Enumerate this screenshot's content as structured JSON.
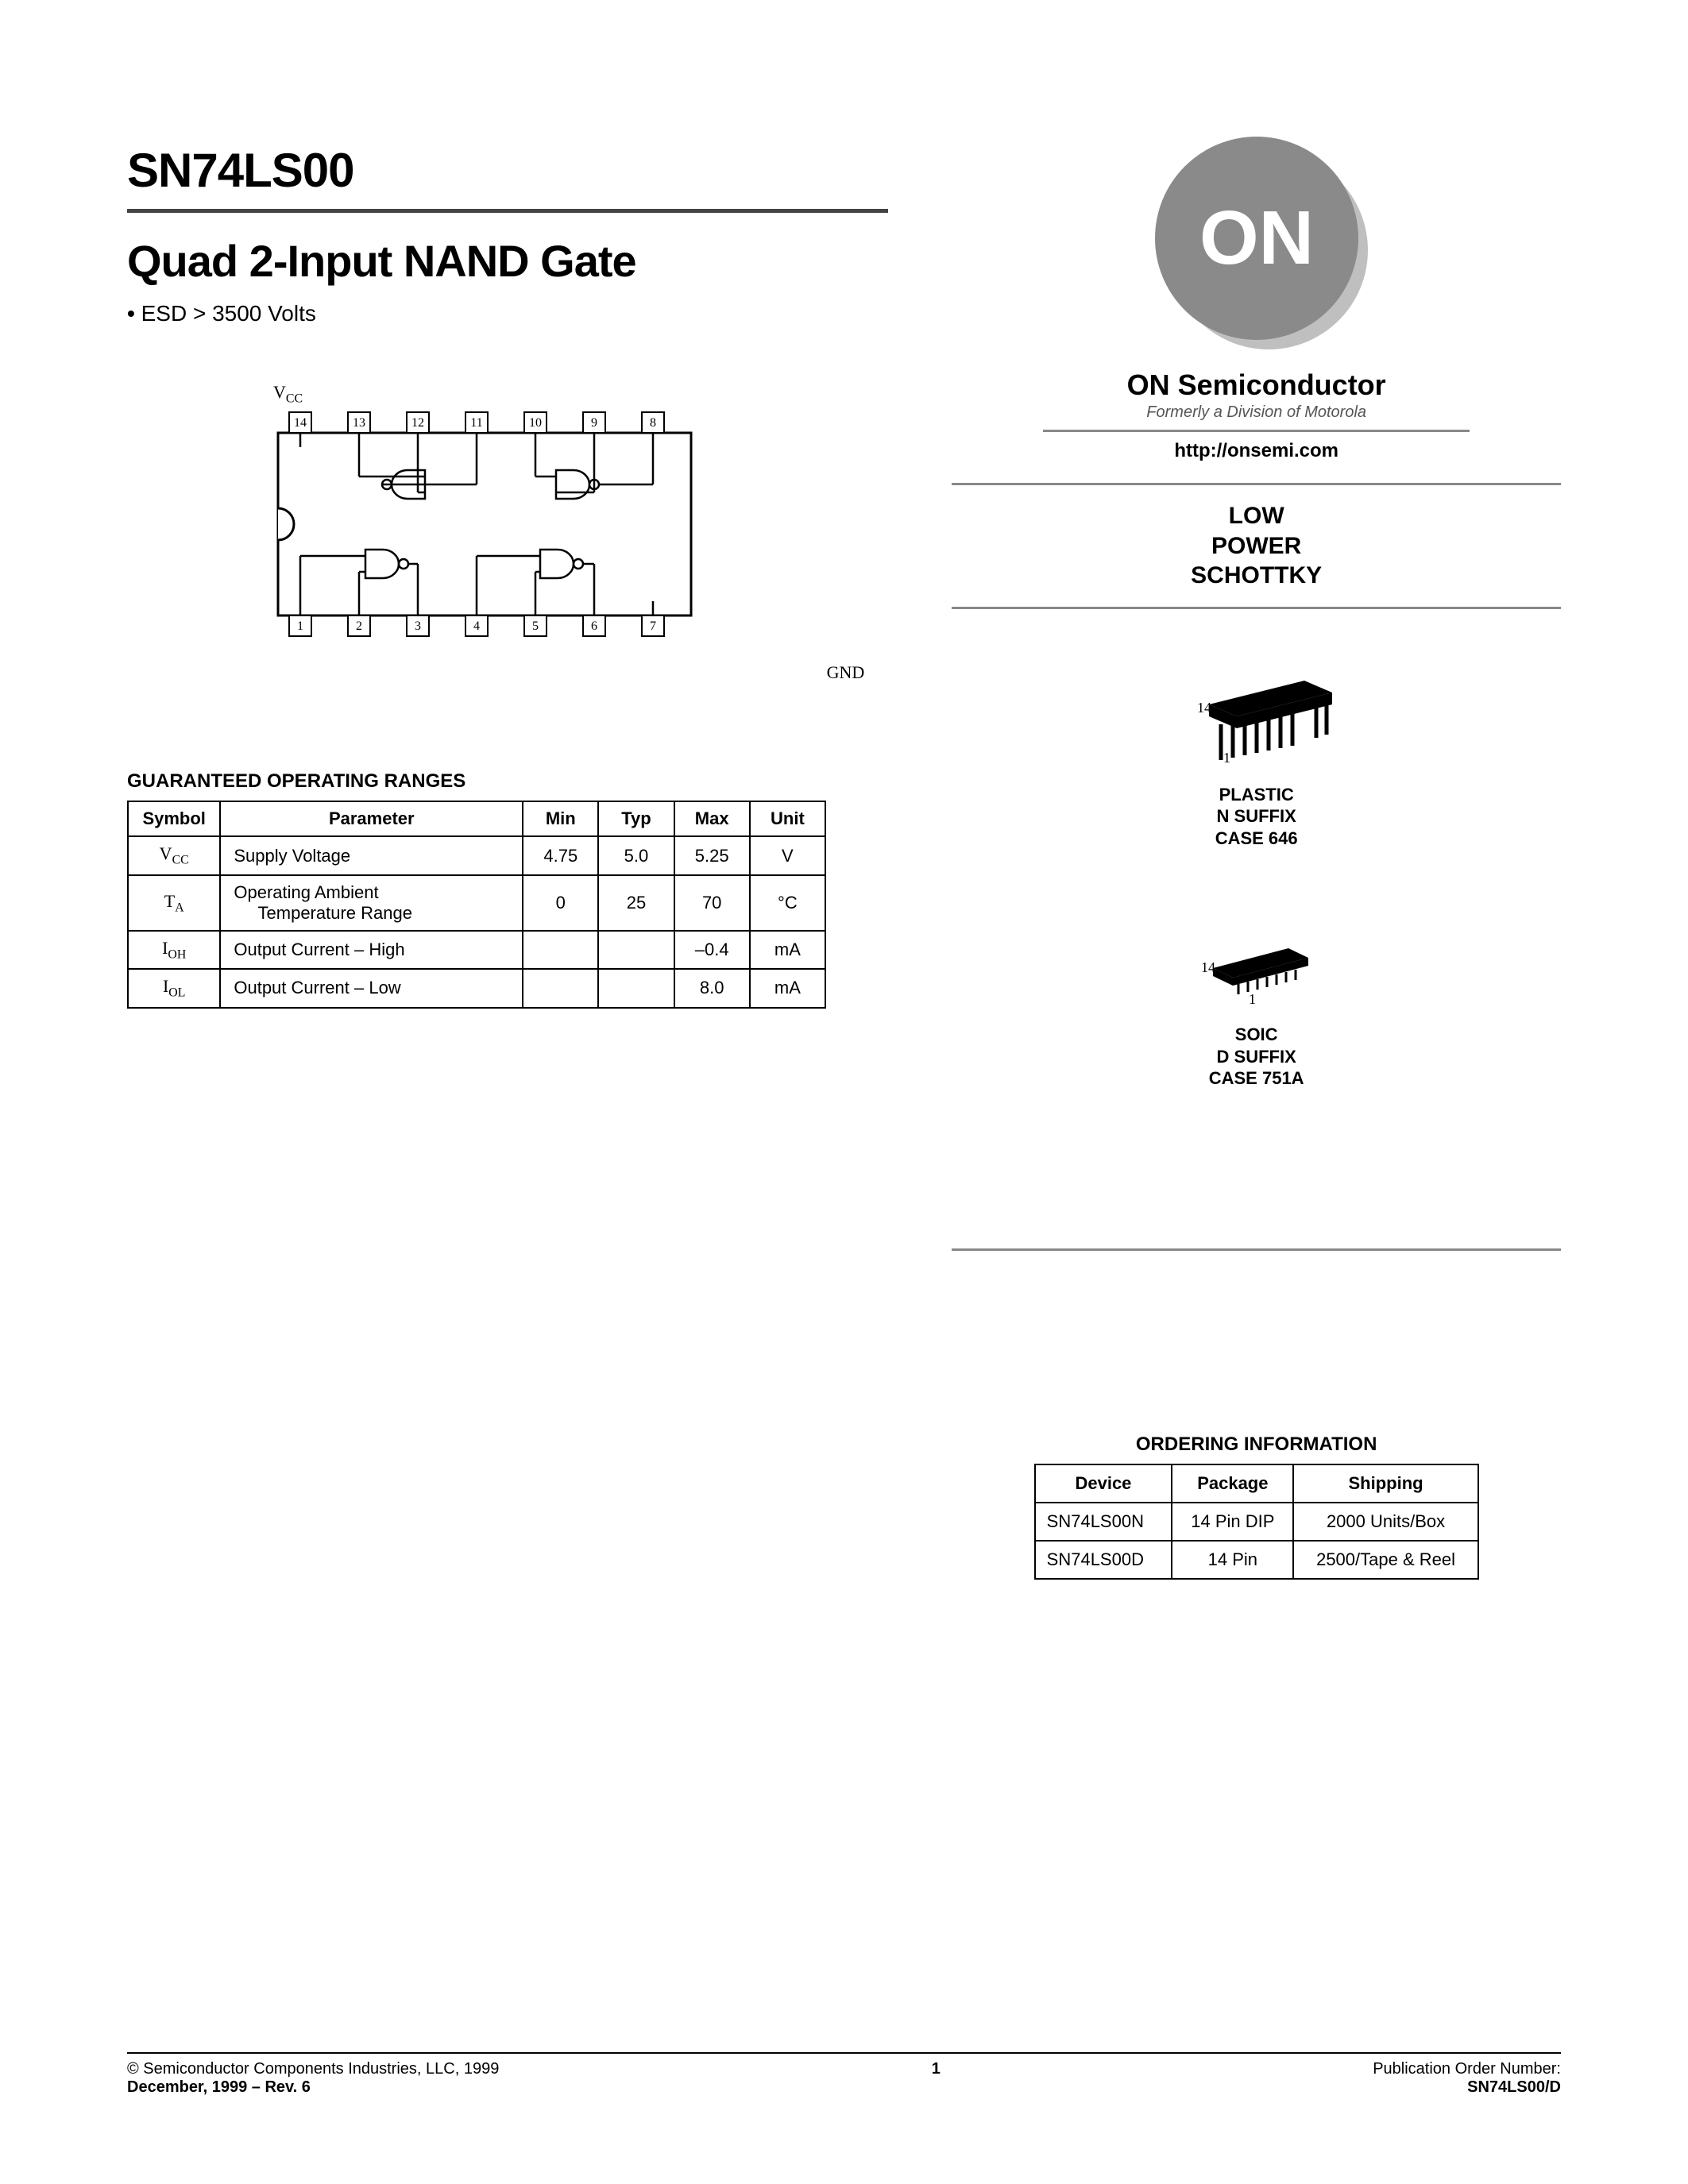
{
  "part_number": "SN74LS00",
  "title": "Quad 2-Input NAND Gate",
  "bullet_esd": "ESD > 3500 Volts",
  "diagram": {
    "vcc_label": "VCC",
    "gnd_label": "GND",
    "top_pins": [
      "14",
      "13",
      "12",
      "11",
      "10",
      "9",
      "8"
    ],
    "bottom_pins": [
      "1",
      "2",
      "3",
      "4",
      "5",
      "6",
      "7"
    ]
  },
  "spec_table": {
    "title": "GUARANTEED OPERATING RANGES",
    "headers": [
      "Symbol",
      "Parameter",
      "Min",
      "Typ",
      "Max",
      "Unit"
    ],
    "rows": [
      {
        "sym_html": "V<span class='sub'>CC</span>",
        "param": "Supply Voltage",
        "min": "4.75",
        "typ": "5.0",
        "max": "5.25",
        "unit": "V"
      },
      {
        "sym_html": "T<span class='sub'>A</span>",
        "param": "Operating Ambient\n    Temperature Range",
        "min": "0",
        "typ": "25",
        "max": "70",
        "unit": "°C"
      },
      {
        "sym_html": "I<span class='sub'>OH</span>",
        "param": "Output Current – High",
        "min": "",
        "typ": "",
        "max": "–0.4",
        "unit": "mA"
      },
      {
        "sym_html": "I<span class='sub'>OL</span>",
        "param": "Output Current – Low",
        "min": "",
        "typ": "",
        "max": "8.0",
        "unit": "mA"
      }
    ]
  },
  "logo": {
    "text": "ON",
    "brand": "ON Semiconductor",
    "tagline": "Formerly a Division of Motorola",
    "url": "http://onsemi.com",
    "circle_color": "#8a8a8a",
    "shadow_color": "#bfbfbf",
    "text_color": "#ffffff"
  },
  "family_lines": [
    "LOW",
    "POWER",
    "SCHOTTKY"
  ],
  "packages": [
    {
      "pin14": "14",
      "pin1": "1",
      "lines": [
        "PLASTIC",
        "N SUFFIX",
        "CASE 646"
      ]
    },
    {
      "pin14": "14",
      "pin1": "1",
      "lines": [
        "SOIC",
        "D SUFFIX",
        "CASE 751A"
      ]
    }
  ],
  "ordering": {
    "title": "ORDERING INFORMATION",
    "headers": [
      "Device",
      "Package",
      "Shipping"
    ],
    "rows": [
      [
        "SN74LS00N",
        "14 Pin DIP",
        "2000 Units/Box"
      ],
      [
        "SN74LS00D",
        "14 Pin",
        "2500/Tape & Reel"
      ]
    ]
  },
  "footer": {
    "copyright": "©  Semiconductor Components Industries, LLC, 1999",
    "date_rev": "December, 1999 – Rev. 6",
    "page": "1",
    "pub_label": "Publication Order Number:",
    "pub_number": "SN74LS00/D"
  },
  "colors": {
    "rule_dark": "#444444",
    "rule_light": "#888888",
    "text": "#000000"
  }
}
